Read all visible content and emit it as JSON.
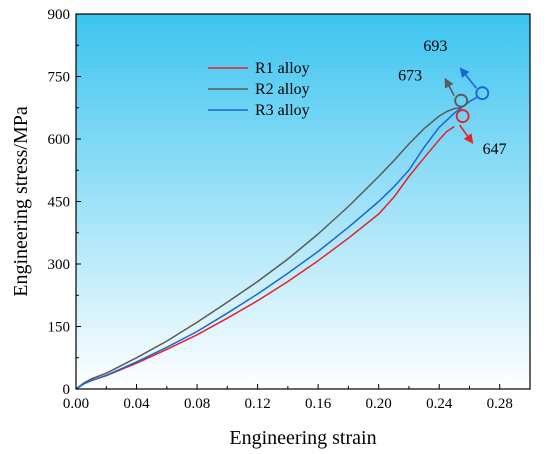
{
  "chart_data": {
    "type": "line",
    "title": "",
    "xlabel": "Engineering strain",
    "ylabel": "Engineering stress/MPa",
    "xlim": [
      0.0,
      0.3
    ],
    "ylim": [
      0,
      900
    ],
    "xticks": [
      0.0,
      0.04,
      0.08,
      0.12,
      0.16,
      0.2,
      0.24,
      0.28
    ],
    "xtick_labels": [
      "0.00",
      "0.04",
      "0.08",
      "0.12",
      "0.16",
      "0.20",
      "0.24",
      "0.28"
    ],
    "yticks": [
      0,
      150,
      300,
      450,
      600,
      750,
      900
    ],
    "ytick_labels": [
      "0",
      "150",
      "300",
      "450",
      "600",
      "750",
      "900"
    ],
    "grid": false,
    "legend_position": "top-center",
    "background": {
      "top": "#3cc4f0",
      "bottom": "#ffffff"
    },
    "series": [
      {
        "name": "R1 alloy",
        "color": "#e8202a",
        "x": [
          0.0,
          0.005,
          0.01,
          0.02,
          0.04,
          0.06,
          0.08,
          0.1,
          0.12,
          0.14,
          0.16,
          0.18,
          0.2,
          0.21,
          0.22,
          0.23,
          0.24,
          0.245,
          0.25
        ],
        "y": [
          0,
          12,
          20,
          32,
          62,
          95,
          130,
          170,
          212,
          258,
          308,
          362,
          420,
          460,
          510,
          555,
          598,
          618,
          630
        ],
        "uts": 647,
        "marker": [
          0.2555,
          655
        ],
        "arrow": {
          "direction": "down-right"
        }
      },
      {
        "name": "R2 alloy",
        "color": "#5a5a5a",
        "x": [
          0.0,
          0.005,
          0.01,
          0.02,
          0.04,
          0.06,
          0.08,
          0.1,
          0.12,
          0.14,
          0.16,
          0.18,
          0.2,
          0.21,
          0.22,
          0.23,
          0.24,
          0.245,
          0.25,
          0.255
        ],
        "y": [
          0,
          14,
          24,
          38,
          75,
          115,
          160,
          208,
          258,
          312,
          372,
          438,
          510,
          548,
          588,
          625,
          655,
          666,
          673,
          675
        ],
        "uts": 673,
        "marker": [
          0.2545,
          692
        ],
        "arrow": {
          "direction": "up-left"
        }
      },
      {
        "name": "R3 alloy",
        "color": "#1a66d6",
        "x": [
          0.0,
          0.005,
          0.01,
          0.02,
          0.04,
          0.06,
          0.08,
          0.1,
          0.12,
          0.14,
          0.16,
          0.18,
          0.2,
          0.21,
          0.22,
          0.23,
          0.24,
          0.25,
          0.26,
          0.265
        ],
        "y": [
          0,
          12,
          20,
          33,
          65,
          100,
          138,
          182,
          228,
          278,
          330,
          388,
          450,
          485,
          525,
          580,
          628,
          662,
          690,
          700
        ],
        "uts": 693,
        "marker": [
          0.2685,
          710
        ],
        "arrow": {
          "direction": "up-left"
        }
      }
    ],
    "annotations": [
      {
        "text": "673",
        "series": "R2 alloy"
      },
      {
        "text": "693",
        "series": "R3 alloy"
      },
      {
        "text": "647",
        "series": "R1 alloy"
      }
    ]
  }
}
